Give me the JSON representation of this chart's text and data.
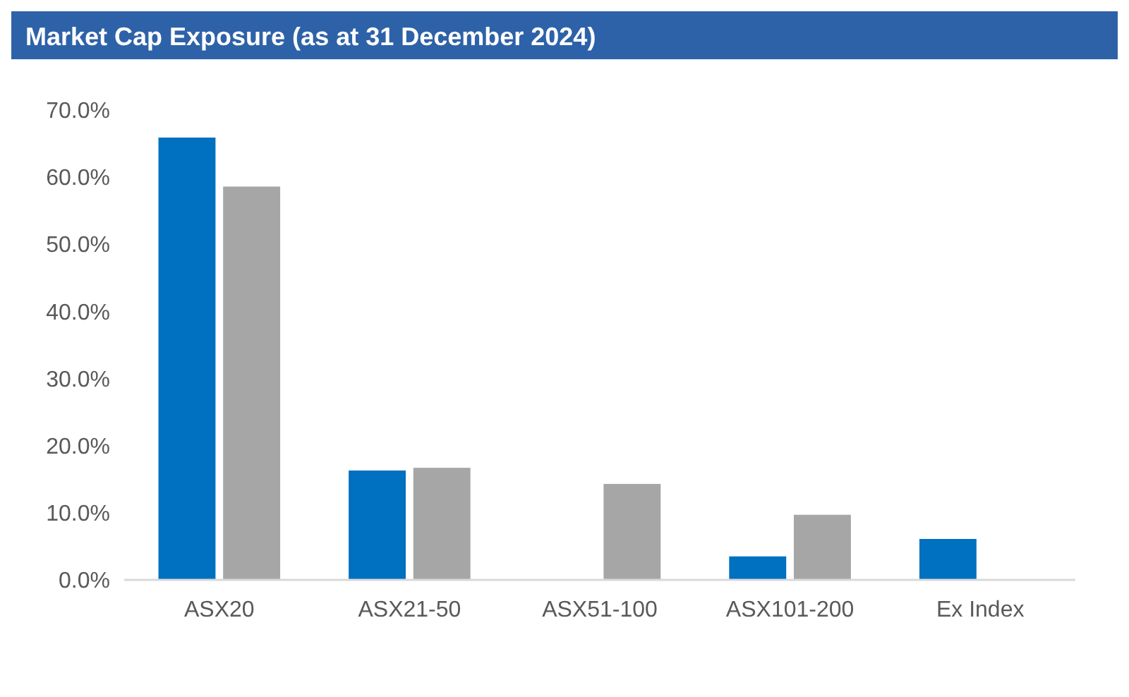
{
  "chart_data": {
    "type": "bar",
    "title": "Market Cap Exposure (as at 31 December 2024)",
    "categories": [
      "ASX20",
      "ASX21-50",
      "ASX51-100",
      "ASX101-200",
      "Ex Index"
    ],
    "series": [
      {
        "color": "#0070c0",
        "values": [
          65.9,
          16.3,
          0,
          3.5,
          6.1
        ]
      },
      {
        "color": "#a6a6a6",
        "values": [
          58.6,
          16.7,
          14.3,
          9.7,
          0
        ]
      }
    ],
    "ylim": [
      0,
      70
    ],
    "yticks": [
      {
        "value": 0,
        "label": "0.0%"
      },
      {
        "value": 10,
        "label": "10.0%"
      },
      {
        "value": 20,
        "label": "20.0%"
      },
      {
        "value": 30,
        "label": "30.0%"
      },
      {
        "value": 40,
        "label": "40.0%"
      },
      {
        "value": 50,
        "label": "50.0%"
      },
      {
        "value": 60,
        "label": "60.0%"
      },
      {
        "value": 70,
        "label": "70.0%"
      }
    ],
    "grid": false
  }
}
